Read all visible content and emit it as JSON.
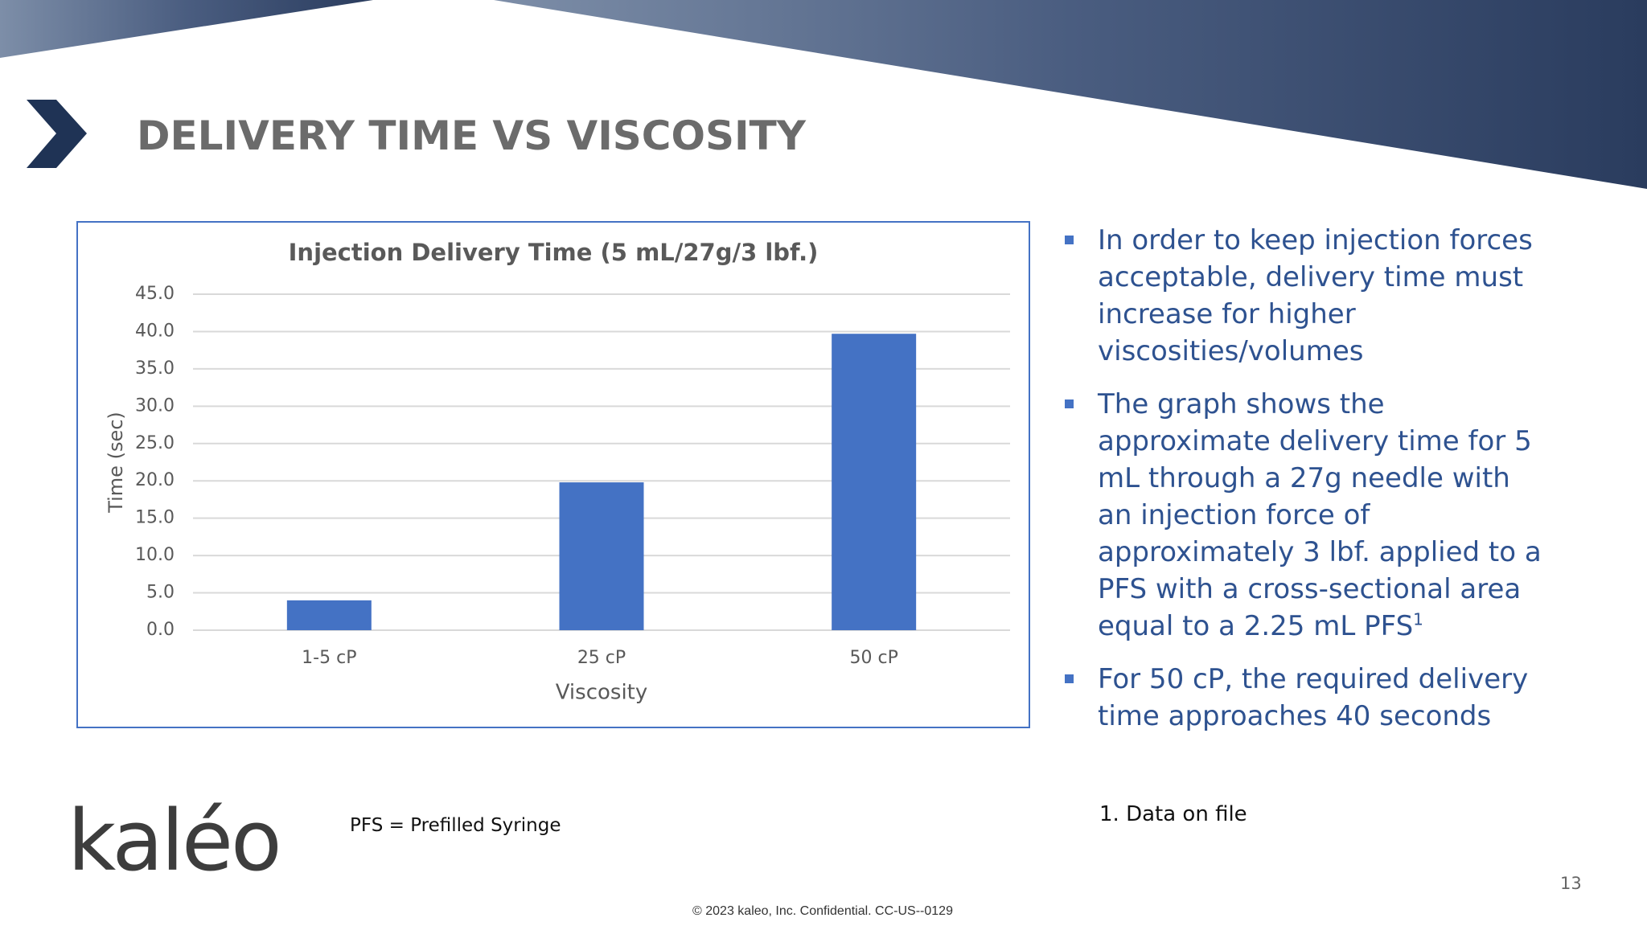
{
  "header": {
    "title": "DELIVERY TIME VS VISCOSITY"
  },
  "chart_data": {
    "type": "bar",
    "title": "Injection Delivery Time (5 mL/27g/3 lbf.)",
    "x_label": "Viscosity",
    "y_label": "Time (sec)",
    "categories": [
      "1-5 cP",
      "25 cP",
      "50 cP"
    ],
    "values": [
      4.0,
      19.8,
      39.7
    ],
    "color": "#4472c4",
    "ylim": [
      0,
      45
    ],
    "yticks": [
      {
        "value": 0,
        "label": "0.0"
      },
      {
        "value": 5,
        "label": "5.0"
      },
      {
        "value": 10,
        "label": "10.0"
      },
      {
        "value": 15,
        "label": "15.0"
      },
      {
        "value": 20,
        "label": "20.0"
      },
      {
        "value": 25,
        "label": "25.0"
      },
      {
        "value": 30,
        "label": "30.0"
      },
      {
        "value": 35,
        "label": "35.0"
      },
      {
        "value": 40,
        "label": "40.0"
      },
      {
        "value": 45,
        "label": "45.0"
      }
    ],
    "grid": true
  },
  "bullets": [
    {
      "text": "In order to keep injection forces acceptable, delivery time must increase for higher viscosities/volumes"
    },
    {
      "text": "The graph shows the approximate delivery time for 5 mL through a 27g needle with an injection force of approximately 3 lbf. applied to a PFS with a cross-sectional area equal to a 2.25 mL PFS",
      "sup": "1"
    },
    {
      "text": "For 50 cP, the required delivery time approaches 40 seconds"
    }
  ],
  "footnote": "1. Data on file",
  "abbreviation": "PFS = Prefilled Syringe",
  "logo": "kaléo",
  "page_number": "13",
  "copyright": "© 2023 kaleo, Inc. Confidential. CC-US--0129"
}
